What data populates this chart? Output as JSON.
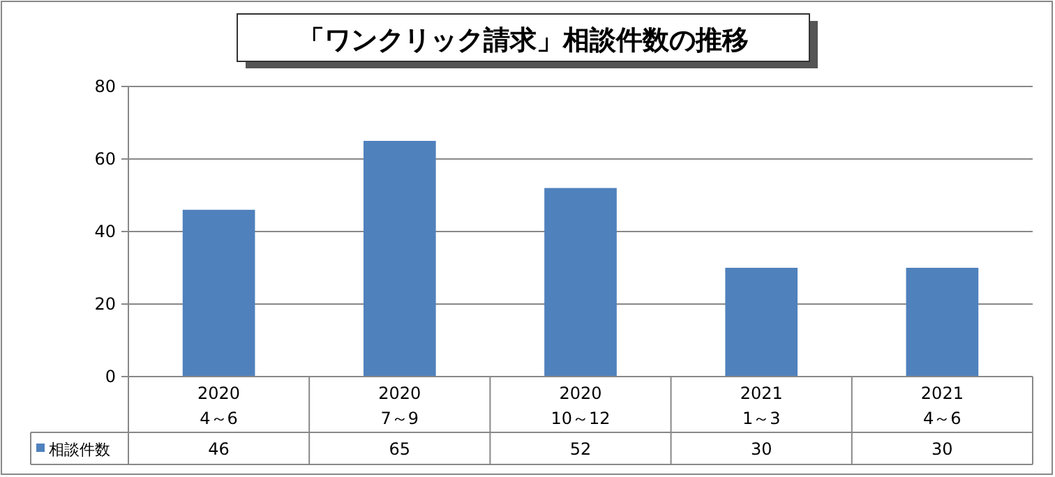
{
  "chart_data": {
    "type": "bar",
    "title": "「ワンクリック請求」相談件数の推移",
    "categories": [
      "2020\n4～6",
      "2020\n7～9",
      "2020\n10～12",
      "2021\n1～3",
      "2021\n4～6"
    ],
    "series": [
      {
        "name": "相談件数",
        "color": "#4f81bd",
        "values": [
          46,
          65,
          52,
          30,
          30
        ]
      }
    ],
    "ylim": [
      0,
      80
    ],
    "yticks": [
      0,
      20,
      40,
      60,
      80
    ],
    "grid": "y",
    "legend": "bottom",
    "data_labels": true
  }
}
